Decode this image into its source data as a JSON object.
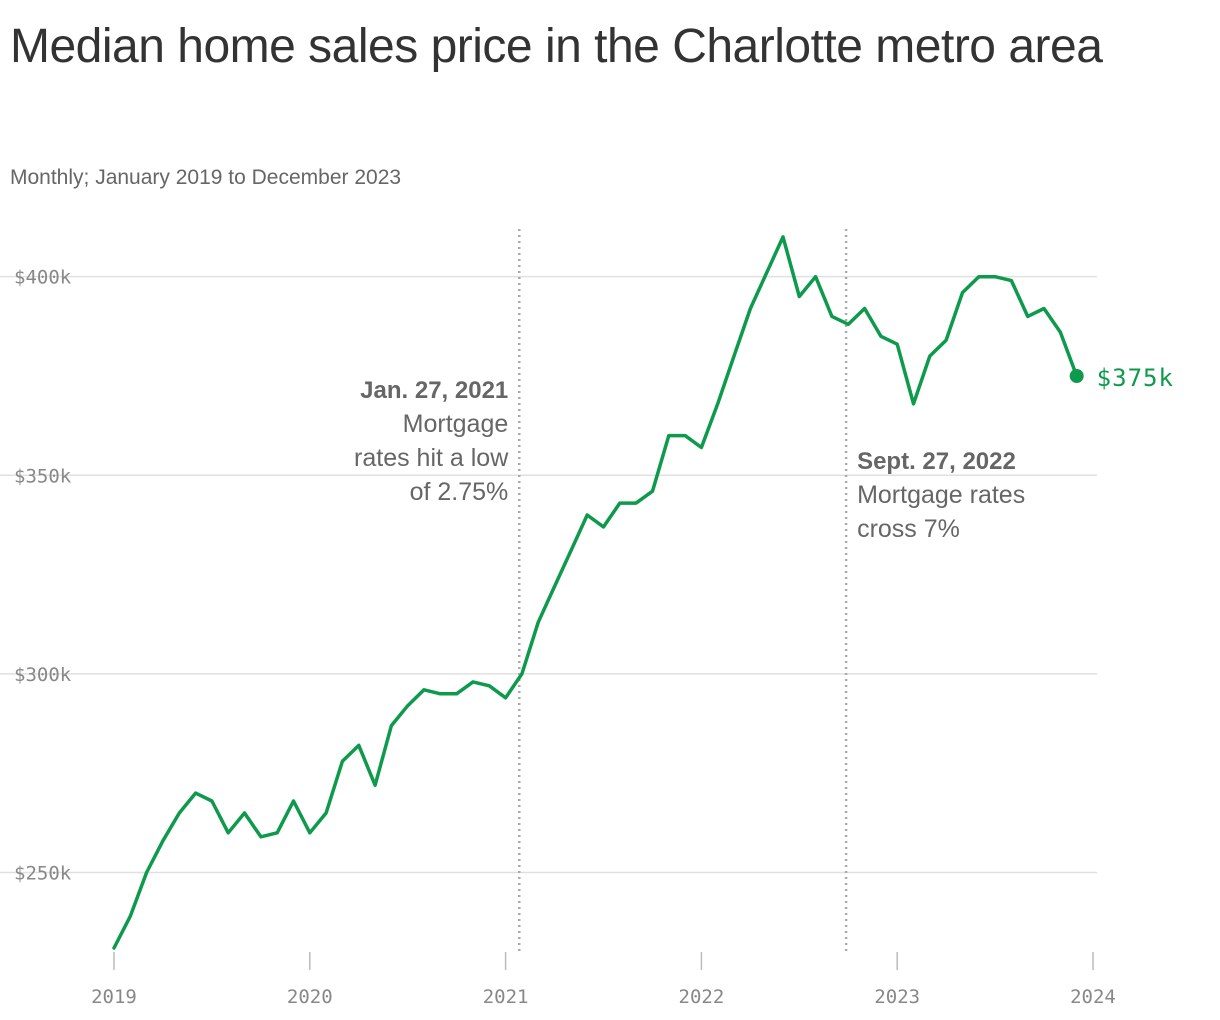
{
  "chart_data": {
    "type": "line",
    "title": "Median home sales price in the Charlotte metro area",
    "subtitle": "Monthly; January 2019 to December 2023",
    "xlabel": "",
    "ylabel": "",
    "xlim": [
      "2019-01",
      "2024-01"
    ],
    "ylim": [
      230000,
      412000
    ],
    "grid": true,
    "y_ticks": [
      {
        "value": 250000,
        "label": "$250k"
      },
      {
        "value": 300000,
        "label": "$300k"
      },
      {
        "value": 350000,
        "label": "$350k"
      },
      {
        "value": 400000,
        "label": "$400k"
      }
    ],
    "x_ticks": [
      {
        "value": "2019-01",
        "label": "2019"
      },
      {
        "value": "2020-01",
        "label": "2020"
      },
      {
        "value": "2021-01",
        "label": "2021"
      },
      {
        "value": "2022-01",
        "label": "2022"
      },
      {
        "value": "2023-01",
        "label": "2023"
      },
      {
        "value": "2024-01",
        "label": "2024"
      }
    ],
    "series": [
      {
        "color": "#0e9a4c",
        "x": [
          "2019-01",
          "2019-02",
          "2019-03",
          "2019-04",
          "2019-05",
          "2019-06",
          "2019-07",
          "2019-08",
          "2019-09",
          "2019-10",
          "2019-11",
          "2019-12",
          "2020-01",
          "2020-02",
          "2020-03",
          "2020-04",
          "2020-05",
          "2020-06",
          "2020-07",
          "2020-08",
          "2020-09",
          "2020-10",
          "2020-11",
          "2020-12",
          "2021-01",
          "2021-02",
          "2021-03",
          "2021-04",
          "2021-05",
          "2021-06",
          "2021-07",
          "2021-08",
          "2021-09",
          "2021-10",
          "2021-11",
          "2021-12",
          "2022-01",
          "2022-02",
          "2022-03",
          "2022-04",
          "2022-05",
          "2022-06",
          "2022-07",
          "2022-08",
          "2022-09",
          "2022-10",
          "2022-11",
          "2022-12",
          "2023-01",
          "2023-02",
          "2023-03",
          "2023-04",
          "2023-05",
          "2023-06",
          "2023-07",
          "2023-08",
          "2023-09",
          "2023-10",
          "2023-11",
          "2023-12"
        ],
        "values": [
          231000,
          239000,
          250000,
          258000,
          265000,
          270000,
          268000,
          260000,
          265000,
          259000,
          260000,
          268000,
          260000,
          265000,
          278000,
          282000,
          272000,
          287000,
          292000,
          296000,
          295000,
          295000,
          298000,
          297000,
          294000,
          300000,
          313000,
          322000,
          331000,
          340000,
          337000,
          343000,
          343000,
          346000,
          360000,
          360000,
          357000,
          368000,
          380000,
          392000,
          401000,
          410000,
          395000,
          400000,
          390000,
          388000,
          392000,
          385000,
          383000,
          368000,
          380000,
          384000,
          396000,
          400000,
          400000,
          399000,
          390000,
          392000,
          386000,
          375000
        ]
      }
    ],
    "end_label": "$375k",
    "annotations": [
      {
        "date": "2021-01-27",
        "bold": "Jan. 27, 2021",
        "lines": [
          "Mortgage",
          "rates hit a low",
          "of 2.75%"
        ],
        "anchor": "end"
      },
      {
        "date": "2022-09-27",
        "bold": "Sept. 27, 2022",
        "lines": [
          "Mortgage rates",
          "cross 7%"
        ],
        "anchor": "start"
      }
    ]
  }
}
